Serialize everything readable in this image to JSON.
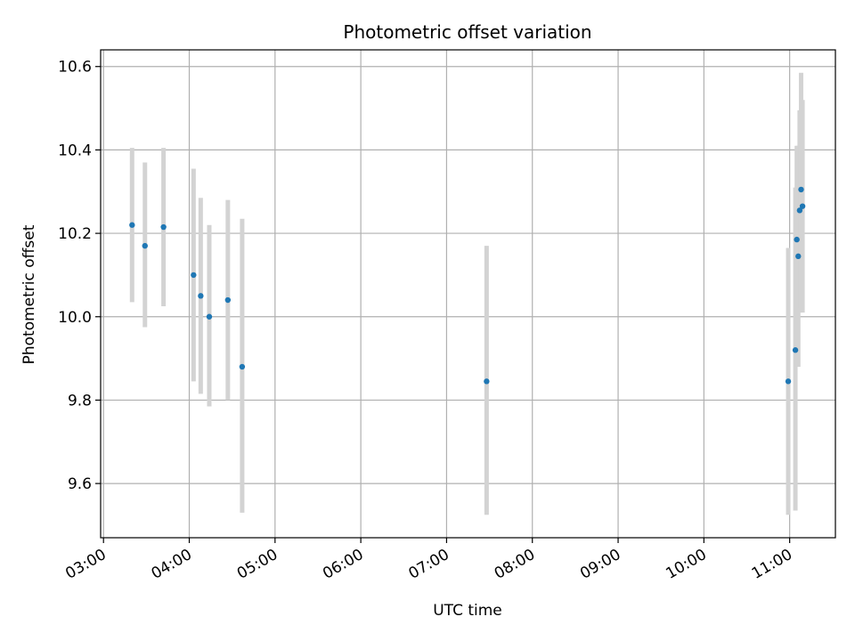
{
  "chart_data": {
    "type": "scatter",
    "title": "Photometric offset variation",
    "xlabel": "UTC time",
    "ylabel": "Photometric offset",
    "x_axis": "time",
    "xlim": [
      "02:58",
      "11:32"
    ],
    "ylim": [
      9.47,
      10.64
    ],
    "x_ticks": [
      "03:00",
      "04:00",
      "05:00",
      "06:00",
      "07:00",
      "08:00",
      "09:00",
      "10:00",
      "11:00"
    ],
    "y_ticks": [
      "9.6",
      "9.8",
      "10.0",
      "10.2",
      "10.4",
      "10.6"
    ],
    "y_tick_values": [
      9.6,
      9.8,
      10.0,
      10.2,
      10.4,
      10.6
    ],
    "grid": true,
    "legend": "none",
    "colors": {
      "points": "#1f77b4",
      "error_bars": "#d3d3d3",
      "grid": "#b0b0b0"
    },
    "points": [
      {
        "x": "03:20",
        "y": 10.22,
        "ylow": 10.035,
        "yhigh": 10.405
      },
      {
        "x": "03:29",
        "y": 10.17,
        "ylow": 9.975,
        "yhigh": 10.37
      },
      {
        "x": "03:42",
        "y": 10.215,
        "ylow": 10.025,
        "yhigh": 10.405
      },
      {
        "x": "04:03",
        "y": 10.1,
        "ylow": 9.845,
        "yhigh": 10.355
      },
      {
        "x": "04:08",
        "y": 10.05,
        "ylow": 9.815,
        "yhigh": 10.285
      },
      {
        "x": "04:14",
        "y": 10.0,
        "ylow": 9.785,
        "yhigh": 10.22
      },
      {
        "x": "04:27",
        "y": 10.04,
        "ylow": 9.8,
        "yhigh": 10.28
      },
      {
        "x": "04:37",
        "y": 9.88,
        "ylow": 9.53,
        "yhigh": 10.235
      },
      {
        "x": "07:28",
        "y": 9.845,
        "ylow": 9.525,
        "yhigh": 10.17
      },
      {
        "x": "10:59",
        "y": 9.845,
        "ylow": 9.525,
        "yhigh": 10.165
      },
      {
        "x": "11:04",
        "y": 9.92,
        "ylow": 9.535,
        "yhigh": 10.31
      },
      {
        "x": "11:05",
        "y": 10.185,
        "ylow": 9.96,
        "yhigh": 10.41
      },
      {
        "x": "11:06",
        "y": 10.145,
        "ylow": 9.88,
        "yhigh": 10.41
      },
      {
        "x": "11:07",
        "y": 10.255,
        "ylow": 10.01,
        "yhigh": 10.495
      },
      {
        "x": "11:08",
        "y": 10.305,
        "ylow": 10.02,
        "yhigh": 10.585
      },
      {
        "x": "11:09",
        "y": 10.265,
        "ylow": 10.01,
        "yhigh": 10.52
      }
    ]
  }
}
